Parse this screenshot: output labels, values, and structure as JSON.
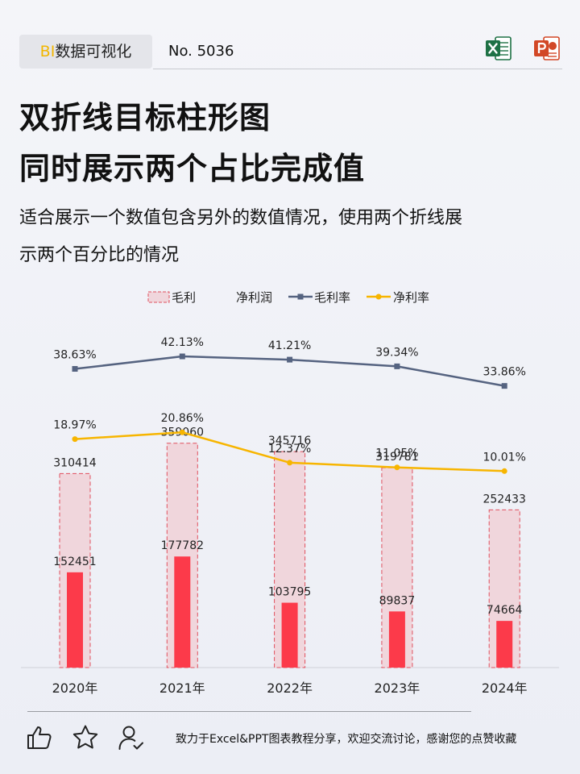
{
  "header": {
    "tag_prefix": "BI",
    "tag_text": "数据可视化",
    "issue": "No. 5036",
    "icons": [
      "excel-icon",
      "powerpoint-icon"
    ],
    "colors": {
      "tag_accent": "#f2b600",
      "excel": "#1e7145",
      "powerpoint": "#d24726"
    }
  },
  "title": {
    "line1": "双折线目标柱形图",
    "line2": "同时展示两个占比完成值"
  },
  "description": {
    "line1": "适合展示一个数值包含另外的数值情况，使用两个折线展",
    "line2": "示两个百分比的情况"
  },
  "chart_data": {
    "type": "bar",
    "categories": [
      "2020年",
      "2021年",
      "2022年",
      "2023年",
      "2024年"
    ],
    "series": [
      {
        "name": "毛利",
        "kind": "bar-target",
        "values": [
          310414,
          359060,
          345716,
          319781,
          252433
        ],
        "color": "#f0d6dc",
        "border": "#e0505e"
      },
      {
        "name": "净利润",
        "kind": "bar",
        "values": [
          152451,
          177782,
          103795,
          89837,
          74664
        ],
        "color": "#fc3a4a"
      },
      {
        "name": "毛利率",
        "kind": "line",
        "values": [
          38.63,
          42.13,
          41.21,
          39.34,
          33.86
        ],
        "labels": [
          "38.63%",
          "42.13%",
          "41.21%",
          "39.34%",
          "33.86%"
        ],
        "color": "#556380"
      },
      {
        "name": "净利率",
        "kind": "line",
        "values": [
          18.97,
          20.86,
          12.37,
          11.05,
          10.01
        ],
        "labels": [
          "18.97%",
          "20.86%",
          "12.37%",
          "11.05%",
          "10.01%"
        ],
        "color": "#f7b500"
      }
    ],
    "bar_axis_range": [
      0,
      400000
    ],
    "line_axis_range": [
      -45,
      55
    ],
    "legend_position": "top-center",
    "grid": false
  },
  "footer": {
    "icons": [
      "thumbs-up-icon",
      "star-icon",
      "follow-user-icon"
    ],
    "text": "致力于Excel&PPT图表教程分享，欢迎交流讨论，感谢您的点赞收藏"
  }
}
